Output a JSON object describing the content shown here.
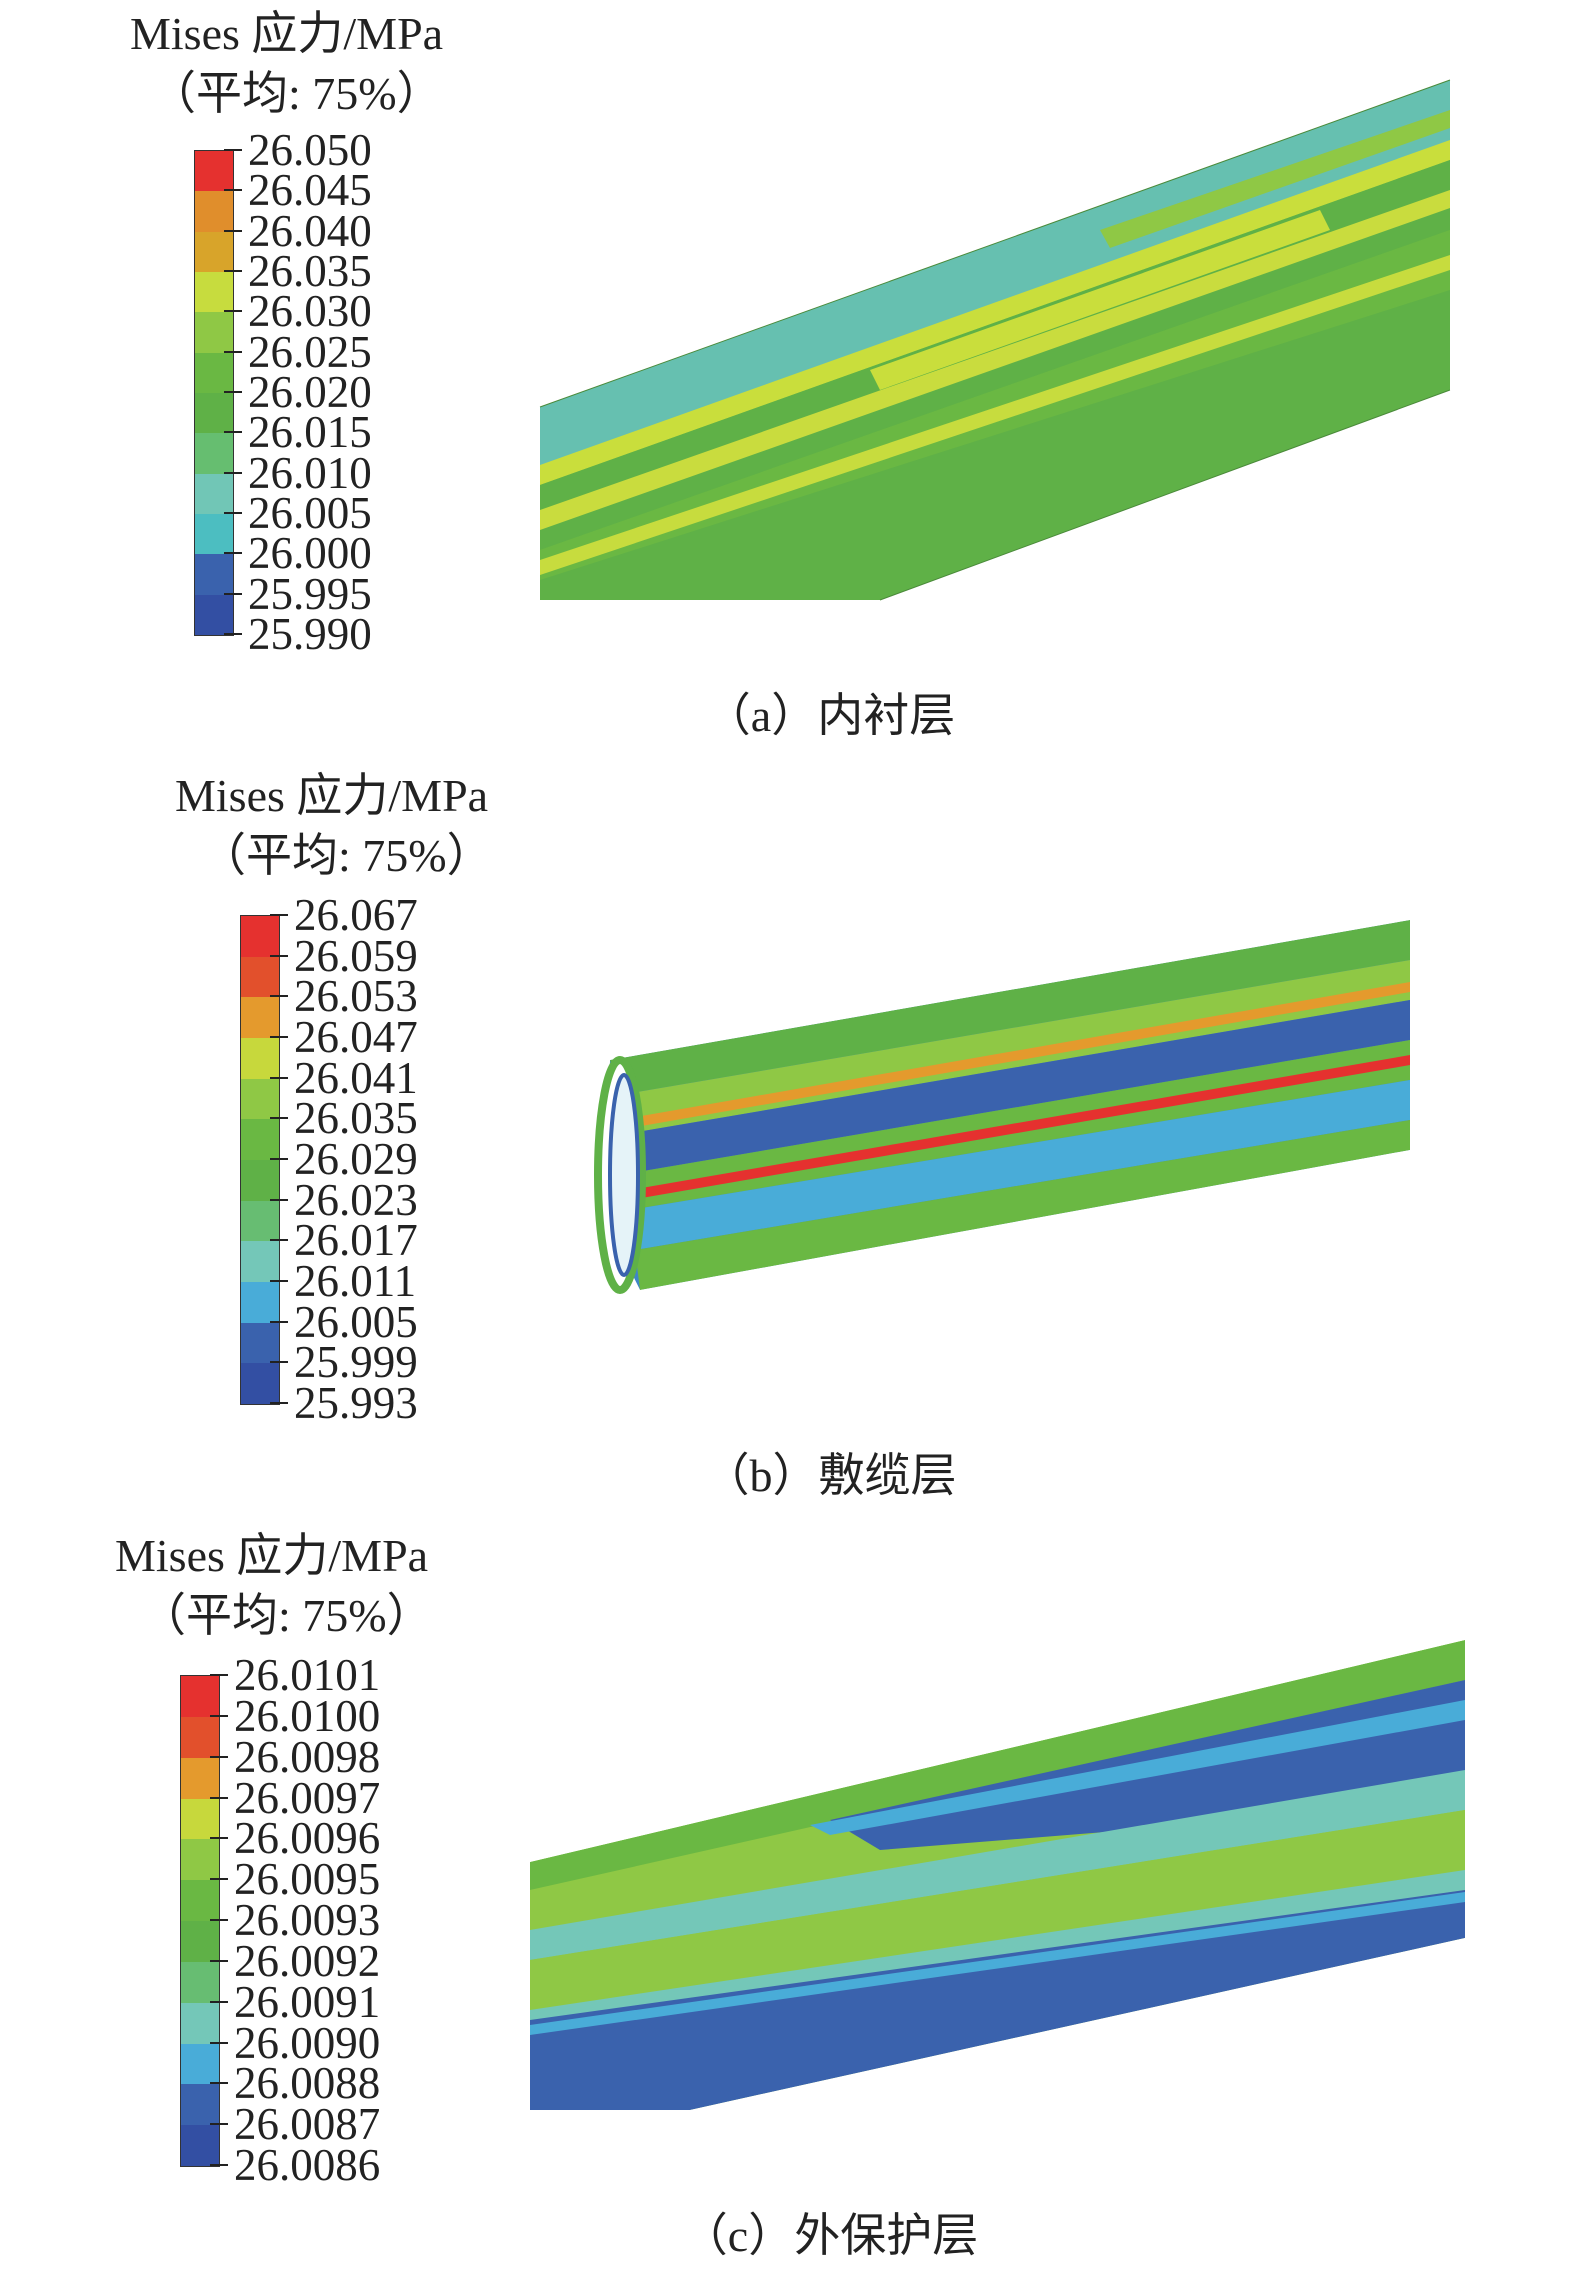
{
  "panels": [
    {
      "id": "a",
      "legend": {
        "title": "Mises 应力/MPa",
        "subtitle": "（平均: 75%）",
        "values": [
          "26.050",
          "26.045",
          "26.040",
          "26.035",
          "26.030",
          "26.025",
          "26.020",
          "26.015",
          "26.010",
          "26.005",
          "26.000",
          "25.995",
          "25.990"
        ],
        "colors": [
          "#e5312f",
          "#e08e2c",
          "#d8a42a",
          "#c7dc3e",
          "#8fc845",
          "#6ab843",
          "#5fb147",
          "#66be70",
          "#71c6b6",
          "#4cbec1",
          "#3a62ad",
          "#334fa3"
        ]
      },
      "caption": "（a）内衬层"
    },
    {
      "id": "b",
      "legend": {
        "title": "Mises 应力/MPa",
        "subtitle": "（平均: 75%）",
        "values": [
          "26.067",
          "26.059",
          "26.053",
          "26.047",
          "26.041",
          "26.035",
          "26.029",
          "26.023",
          "26.017",
          "26.011",
          "26.005",
          "25.999",
          "25.993"
        ],
        "colors": [
          "#e5312f",
          "#e2502c",
          "#e49a2d",
          "#c7d83c",
          "#8fc845",
          "#6ab843",
          "#5fb147",
          "#67bd72",
          "#74c7b8",
          "#49acd8",
          "#3a62ad",
          "#334fa3"
        ]
      },
      "caption": "（b）敷缆层"
    },
    {
      "id": "c",
      "legend": {
        "title": "Mises 应力/MPa",
        "subtitle": "（平均: 75%）",
        "values": [
          "26.0101",
          "26.0100",
          "26.0098",
          "26.0097",
          "26.0096",
          "26.0095",
          "26.0093",
          "26.0092",
          "26.0091",
          "26.0090",
          "26.0088",
          "26.0087",
          "26.0086"
        ],
        "colors": [
          "#e5312f",
          "#e2502c",
          "#e49a2d",
          "#c7d83c",
          "#8fc845",
          "#6ab843",
          "#5fb147",
          "#67bd72",
          "#74c7b8",
          "#49acd8",
          "#3a62ad",
          "#334fa3"
        ]
      },
      "caption": "（c）外保护层"
    }
  ]
}
